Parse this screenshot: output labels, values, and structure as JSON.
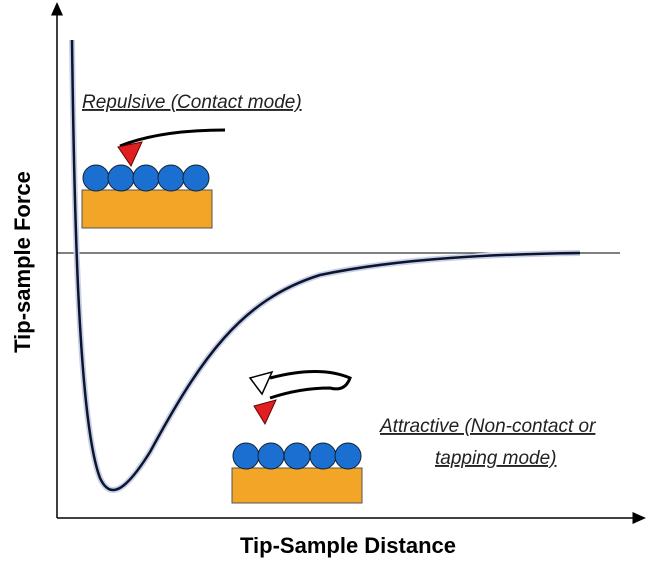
{
  "axes": {
    "y_label": "Tip-sample Force",
    "x_label": "Tip-Sample Distance"
  },
  "annotations": {
    "repulsive": "Repulsive (Contact mode)",
    "attractive": [
      "Attractive (Non-contact or",
      "tapping mode)"
    ]
  }
}
